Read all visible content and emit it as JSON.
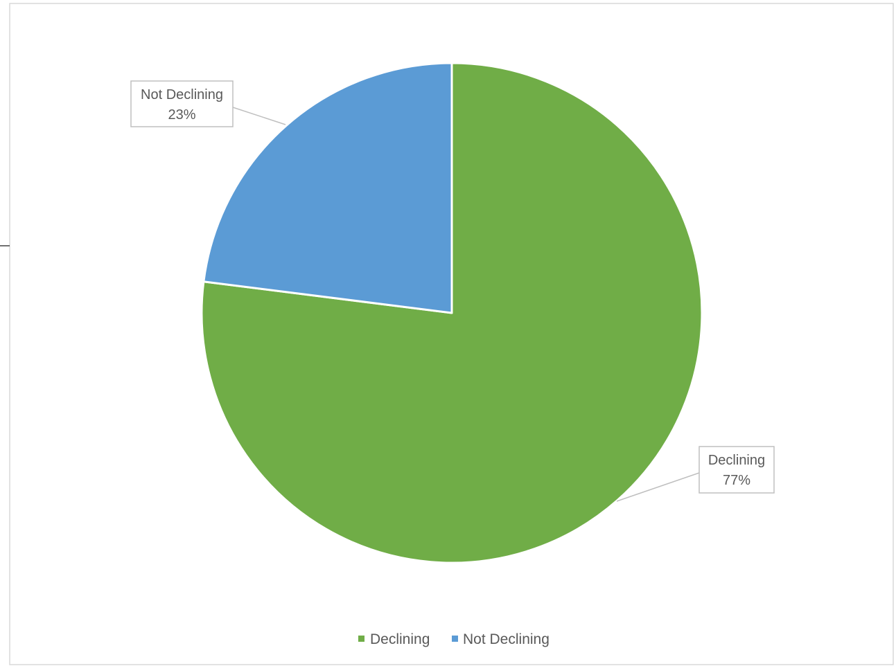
{
  "chart_data": {
    "type": "pie",
    "categories": [
      "Declining",
      "Not Declining"
    ],
    "values": [
      77,
      23
    ],
    "unit": "%",
    "colors": [
      "#70AD47",
      "#5B9BD5"
    ],
    "data_labels": [
      {
        "name": "Declining",
        "value": "77%"
      },
      {
        "name": "Not Declining",
        "value": "23%"
      }
    ],
    "legend": {
      "position": "bottom",
      "items": [
        "Declining",
        "Not Declining"
      ]
    },
    "start_angle_deg": 0,
    "direction": "clockwise"
  }
}
